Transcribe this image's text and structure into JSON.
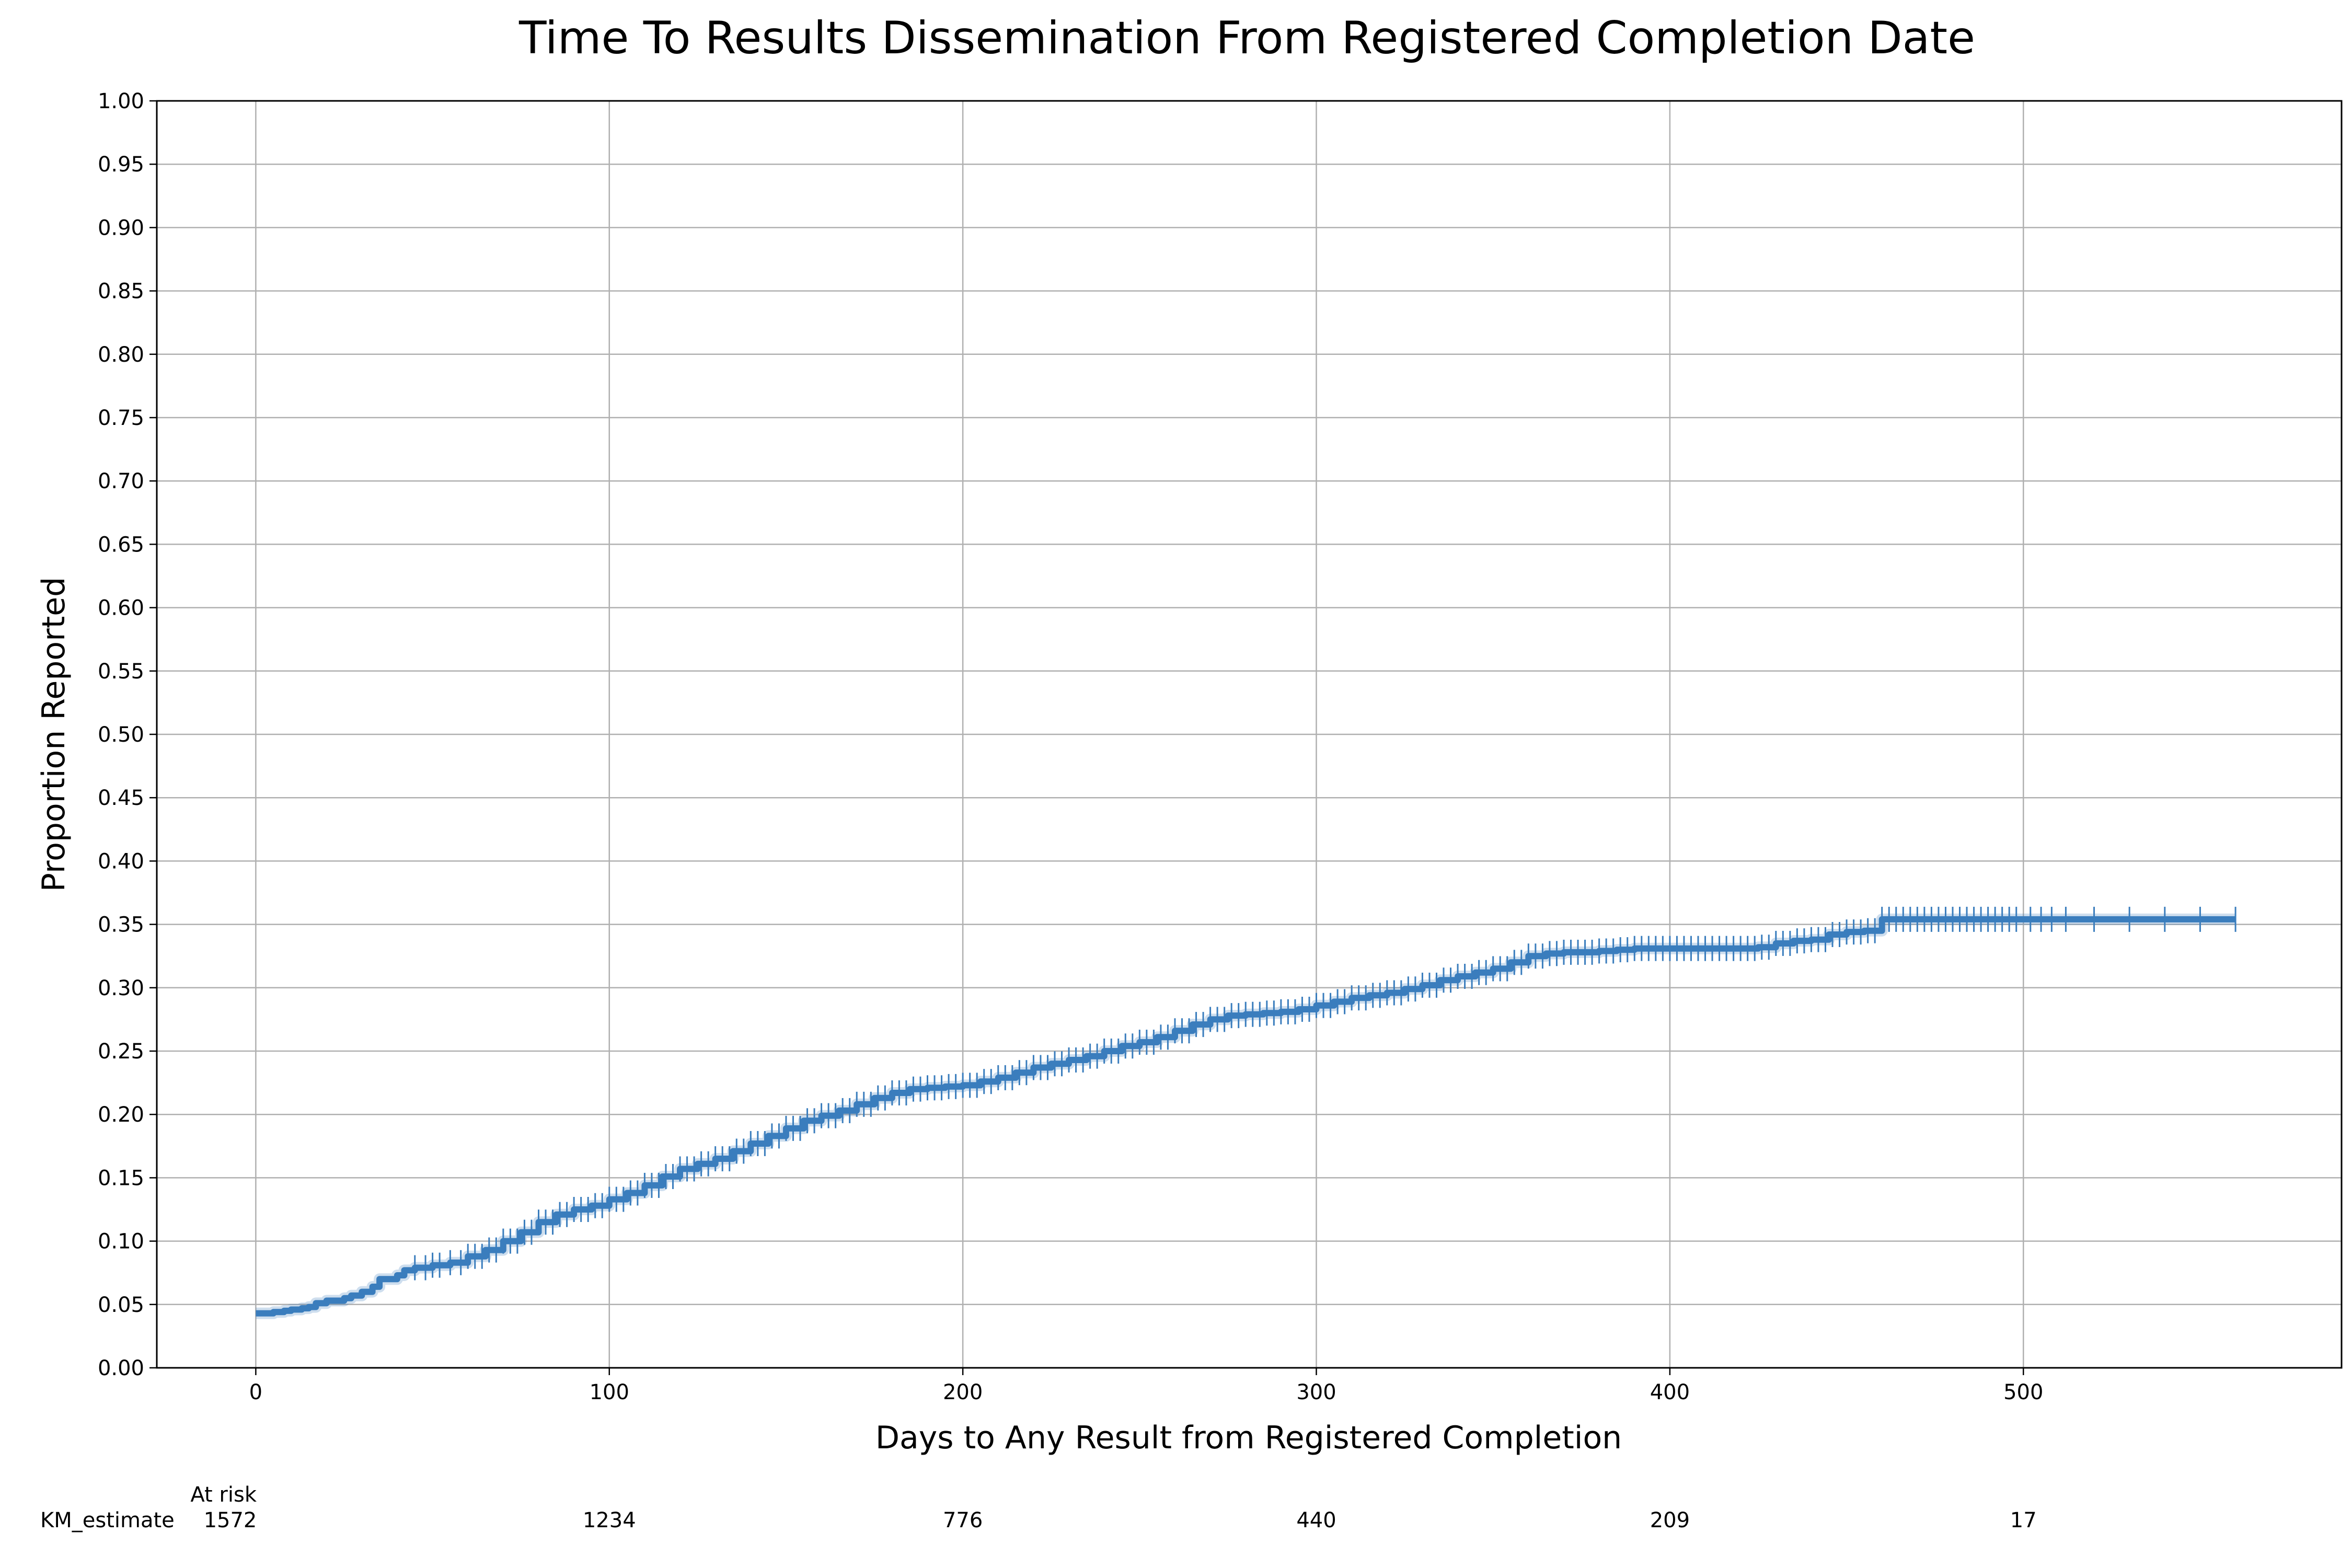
{
  "chart_data": {
    "type": "line",
    "title": "Time To Results Dissemination From Registered Completion Date",
    "xlabel": "Days to Any Result from Registered Completion",
    "ylabel": "Proportion Reported",
    "xlim": [
      -28,
      590
    ],
    "ylim": [
      0,
      1
    ],
    "xticks": [
      0,
      100,
      200,
      300,
      400,
      500
    ],
    "yticks": [
      "0.00",
      "0.05",
      "0.10",
      "0.15",
      "0.20",
      "0.25",
      "0.30",
      "0.35",
      "0.40",
      "0.45",
      "0.50",
      "0.55",
      "0.60",
      "0.65",
      "0.70",
      "0.75",
      "0.80",
      "0.85",
      "0.90",
      "0.95",
      "1.00"
    ],
    "grid": true,
    "color": "#3a7dbd",
    "series": [
      {
        "x": [
          0,
          5,
          8,
          10,
          13,
          15,
          17,
          20,
          25,
          27,
          30,
          33,
          35,
          40,
          42,
          45,
          50,
          55,
          60,
          65,
          70,
          75,
          80,
          85,
          90,
          95,
          100,
          105,
          110,
          115,
          120,
          125,
          130,
          135,
          140,
          145,
          150,
          155,
          160,
          165,
          170,
          175,
          180,
          185,
          190,
          195,
          200,
          205,
          210,
          215,
          220,
          225,
          230,
          235,
          240,
          245,
          250,
          255,
          260,
          265,
          270,
          275,
          280,
          285,
          290,
          295,
          300,
          305,
          310,
          315,
          320,
          325,
          330,
          335,
          340,
          345,
          350,
          355,
          360,
          365,
          370,
          375,
          380,
          385,
          390,
          400,
          410,
          420,
          425,
          430,
          435,
          440,
          445,
          450,
          455,
          460,
          470,
          480,
          490,
          500,
          510,
          520,
          530,
          540,
          550,
          560
        ],
        "y": [
          0.043,
          0.044,
          0.045,
          0.046,
          0.047,
          0.048,
          0.051,
          0.053,
          0.055,
          0.057,
          0.06,
          0.064,
          0.07,
          0.073,
          0.077,
          0.079,
          0.081,
          0.083,
          0.088,
          0.093,
          0.1,
          0.107,
          0.115,
          0.121,
          0.125,
          0.128,
          0.133,
          0.138,
          0.144,
          0.151,
          0.157,
          0.161,
          0.165,
          0.171,
          0.177,
          0.183,
          0.189,
          0.195,
          0.199,
          0.203,
          0.208,
          0.213,
          0.217,
          0.22,
          0.221,
          0.222,
          0.223,
          0.226,
          0.229,
          0.233,
          0.237,
          0.24,
          0.243,
          0.246,
          0.25,
          0.254,
          0.257,
          0.261,
          0.266,
          0.271,
          0.275,
          0.278,
          0.279,
          0.28,
          0.281,
          0.283,
          0.286,
          0.289,
          0.292,
          0.294,
          0.296,
          0.299,
          0.302,
          0.306,
          0.309,
          0.312,
          0.315,
          0.32,
          0.325,
          0.327,
          0.328,
          0.328,
          0.329,
          0.33,
          0.331,
          0.331,
          0.331,
          0.331,
          0.332,
          0.335,
          0.337,
          0.338,
          0.342,
          0.344,
          0.345,
          0.354,
          0.354,
          0.354,
          0.354,
          0.354,
          0.354,
          0.354,
          0.354,
          0.354,
          0.354,
          0.354
        ]
      }
    ],
    "censor_ticks": [
      45,
      48,
      50,
      52,
      55,
      58,
      60,
      62,
      64,
      66,
      68,
      70,
      72,
      74,
      76,
      78,
      80,
      82,
      84,
      86,
      88,
      90,
      92,
      94,
      96,
      98,
      100,
      102,
      104,
      106,
      108,
      110,
      112,
      114,
      116,
      118,
      120,
      122,
      124,
      126,
      128,
      130,
      132,
      134,
      136,
      138,
      140,
      142,
      144,
      146,
      148,
      150,
      152,
      154,
      156,
      158,
      160,
      162,
      164,
      166,
      168,
      170,
      172,
      174,
      176,
      178,
      180,
      182,
      184,
      186,
      188,
      190,
      192,
      194,
      196,
      198,
      200,
      202,
      204,
      206,
      208,
      210,
      212,
      214,
      216,
      218,
      220,
      222,
      224,
      226,
      228,
      230,
      232,
      234,
      236,
      238,
      240,
      242,
      244,
      246,
      248,
      250,
      252,
      254,
      256,
      258,
      260,
      262,
      264,
      266,
      268,
      270,
      272,
      274,
      276,
      278,
      280,
      282,
      284,
      286,
      288,
      290,
      292,
      294,
      296,
      298,
      300,
      302,
      304,
      306,
      308,
      310,
      312,
      314,
      316,
      318,
      320,
      322,
      324,
      326,
      328,
      330,
      332,
      334,
      336,
      338,
      340,
      342,
      344,
      346,
      348,
      350,
      352,
      354,
      356,
      358,
      360,
      362,
      364,
      366,
      368,
      370,
      372,
      374,
      376,
      378,
      380,
      382,
      384,
      386,
      388,
      390,
      392,
      394,
      396,
      398,
      400,
      402,
      404,
      406,
      408,
      410,
      412,
      414,
      416,
      418,
      420,
      422,
      424,
      426,
      428,
      430,
      432,
      434,
      436,
      438,
      440,
      442,
      444,
      446,
      448,
      450,
      452,
      454,
      456,
      458,
      460,
      462,
      464,
      466,
      468,
      470,
      472,
      474,
      476,
      478,
      480,
      482,
      484,
      486,
      488,
      490,
      492,
      494,
      496,
      498,
      502,
      505,
      508,
      512,
      520,
      530,
      540,
      550,
      560
    ],
    "at_risk": {
      "header": "At risk",
      "row_label": "KM_estimate",
      "x": [
        0,
        100,
        200,
        300,
        400,
        500
      ],
      "values": [
        "1572",
        "1234",
        "776",
        "440",
        "209",
        "17"
      ]
    }
  }
}
